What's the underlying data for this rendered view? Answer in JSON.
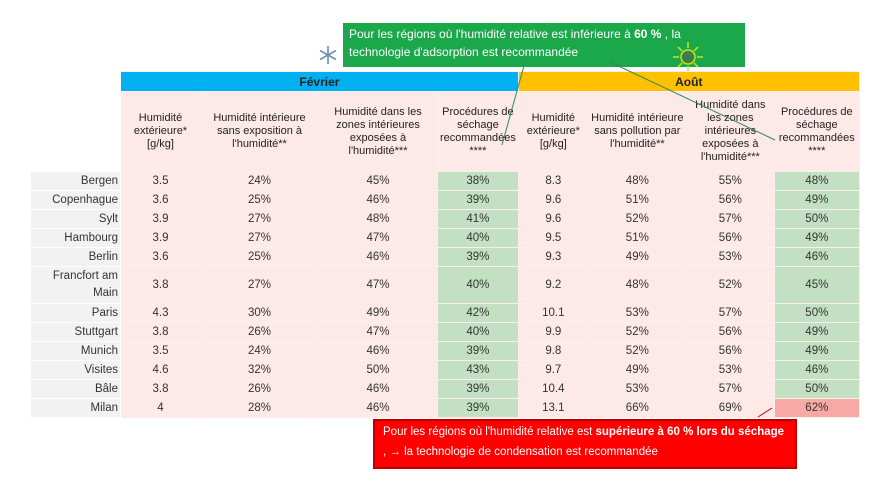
{
  "callouts": {
    "green": {
      "text_before": "Pour les régions où l'humidité relative est inférieure à ",
      "bold": "60 %",
      "text_after": " , la technologie d'adsorption est recommandée",
      "color": "#1aa84a"
    },
    "red": {
      "text_before": "Pour les régions où l'humidité relative est ",
      "bold": "supérieure à 60 % lors du séchage",
      "text_after": " , → la technologie de condensation est recommandée",
      "color": "#ff0000"
    }
  },
  "icons": {
    "winter": "snowflake-icon",
    "summer": "sun-icon"
  },
  "table": {
    "groups": [
      {
        "label": "Février",
        "color": "#00b0f0"
      },
      {
        "label": "Août",
        "color": "#ffc000"
      }
    ],
    "headers": [
      "Humidité extérieure* [g/kg]",
      "Humidité intérieure sans exposition à l'humidité**",
      "Humidité dans les zones intérieures exposées à l'humidité***",
      "Procédures de séchage recommandées ****",
      "Humidité extérieure* [g/kg]",
      "Humidité intérieure sans pollution par l'humidité**",
      "Humidité dans les zones intérieures exposées à l'humidité***",
      "Procédures de séchage recommandées ****"
    ],
    "rows": [
      {
        "city": "Bergen",
        "values": [
          "3.5",
          "24%",
          "45%",
          "38%",
          "8.3",
          "48%",
          "55%",
          "48%"
        ]
      },
      {
        "city": "Copenhague",
        "values": [
          "3.6",
          "25%",
          "46%",
          "39%",
          "9.6",
          "51%",
          "56%",
          "49%"
        ]
      },
      {
        "city": "Sylt",
        "values": [
          "3.9",
          "27%",
          "48%",
          "41%",
          "9.6",
          "52%",
          "57%",
          "50%"
        ]
      },
      {
        "city": "Hambourg",
        "values": [
          "3.9",
          "27%",
          "47%",
          "40%",
          "9.5",
          "51%",
          "56%",
          "49%"
        ]
      },
      {
        "city": "Berlin",
        "values": [
          "3.6",
          "25%",
          "46%",
          "39%",
          "9.3",
          "49%",
          "53%",
          "46%"
        ]
      },
      {
        "city": "Francfort am Main",
        "values": [
          "3.8",
          "27%",
          "47%",
          "40%",
          "9.2",
          "48%",
          "52%",
          "45%"
        ]
      },
      {
        "city": "Paris",
        "values": [
          "4.3",
          "30%",
          "49%",
          "42%",
          "10.1",
          "53%",
          "57%",
          "50%"
        ]
      },
      {
        "city": "Stuttgart",
        "values": [
          "3.8",
          "26%",
          "47%",
          "40%",
          "9.9",
          "52%",
          "56%",
          "49%"
        ]
      },
      {
        "city": "Munich",
        "values": [
          "3.5",
          "24%",
          "46%",
          "39%",
          "9.8",
          "52%",
          "56%",
          "49%"
        ]
      },
      {
        "city": "Visites",
        "values": [
          "4.6",
          "32%",
          "50%",
          "43%",
          "9.7",
          "49%",
          "53%",
          "46%"
        ]
      },
      {
        "city": "Bâle",
        "values": [
          "3.8",
          "26%",
          "46%",
          "39%",
          "10.4",
          "53%",
          "57%",
          "50%"
        ]
      },
      {
        "city": "Milan",
        "values": [
          "4",
          "28%",
          "46%",
          "39%",
          "13.1",
          "66%",
          "69%",
          "62%"
        ]
      }
    ],
    "colors": {
      "recommended": "#c3e0c3",
      "exceeds": "#f7a9a6",
      "cell": "#fde9e7"
    }
  }
}
